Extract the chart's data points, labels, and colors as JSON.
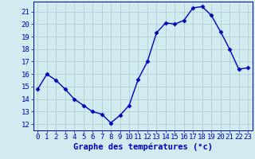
{
  "x": [
    0,
    1,
    2,
    3,
    4,
    5,
    6,
    7,
    8,
    9,
    10,
    11,
    12,
    13,
    14,
    15,
    16,
    17,
    18,
    19,
    20,
    21,
    22,
    23
  ],
  "y": [
    14.8,
    16.0,
    15.5,
    14.8,
    14.0,
    13.5,
    13.0,
    12.8,
    12.1,
    12.7,
    13.5,
    15.6,
    17.0,
    19.3,
    20.1,
    20.0,
    20.3,
    21.3,
    21.4,
    20.7,
    19.4,
    18.0,
    16.4,
    16.5
  ],
  "line_color": "#0000bb",
  "marker": "D",
  "marker_size": 2.5,
  "bg_color": "#d0ecf0",
  "grid_color": "#aacccc",
  "xlabel": "Graphe des températures (°c)",
  "ylabel_ticks": [
    12,
    13,
    14,
    15,
    16,
    17,
    18,
    19,
    20,
    21
  ],
  "ylim": [
    11.5,
    21.8
  ],
  "xlim": [
    -0.5,
    23.5
  ],
  "tick_label_color": "#0000bb",
  "xlabel_color": "#0000bb",
  "xlabel_fontsize": 7.5,
  "tick_fontsize": 6.5,
  "linewidth": 1.0
}
